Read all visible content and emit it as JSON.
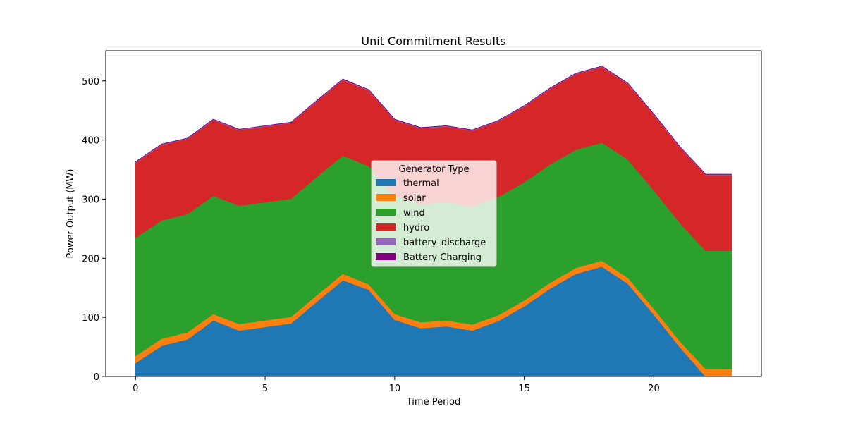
{
  "chart_data": {
    "type": "area",
    "title": "Unit Commitment Results",
    "xlabel": "Time Period",
    "ylabel": "Power Output (MW)",
    "xlim": [
      -1.15,
      24.15
    ],
    "ylim": [
      0,
      551
    ],
    "xticks": [
      0,
      5,
      10,
      15,
      20
    ],
    "yticks": [
      0,
      100,
      200,
      300,
      400,
      500
    ],
    "grid": false,
    "legend": {
      "title": "Generator Type",
      "placement": "center"
    },
    "x": [
      0,
      1,
      2,
      3,
      4,
      5,
      6,
      7,
      8,
      9,
      10,
      11,
      12,
      13,
      14,
      15,
      16,
      17,
      18,
      19,
      20,
      21,
      22,
      23
    ],
    "series": [
      {
        "name": "thermal",
        "color": "#1f77b4",
        "values": [
          23,
          52,
          63,
          95,
          78,
          84,
          90,
          127,
          163,
          147,
          96,
          82,
          85,
          78,
          94,
          119,
          149,
          174,
          186,
          157,
          105,
          50,
          0,
          0
        ]
      },
      {
        "name": "solar",
        "color": "#ff7f0e",
        "values": [
          12,
          12,
          12,
          11,
          11,
          11,
          11,
          11,
          11,
          9,
          10,
          10,
          10,
          10,
          10,
          10,
          10,
          10,
          10,
          10,
          10,
          10,
          13,
          13
        ]
      },
      {
        "name": "wind",
        "color": "#2ca02c",
        "values": [
          200,
          200,
          200,
          200,
          200,
          200,
          200,
          200,
          200,
          200,
          200,
          200,
          200,
          200,
          200,
          200,
          200,
          200,
          200,
          200,
          200,
          200,
          200,
          200
        ]
      },
      {
        "name": "hydro",
        "color": "#d62728",
        "values": [
          127,
          128,
          127,
          128,
          128,
          128,
          128,
          128,
          128,
          128,
          128,
          128,
          128,
          128,
          128,
          128,
          128,
          128,
          128,
          128,
          128,
          128,
          128,
          128
        ]
      },
      {
        "name": "battery_discharge",
        "color": "#9467bd",
        "values": [
          1,
          1,
          1,
          1,
          1,
          1,
          1,
          1,
          1,
          1,
          1,
          1,
          1,
          1,
          1,
          1,
          1,
          1,
          1,
          1,
          1,
          1,
          1,
          1
        ]
      },
      {
        "name": "Battery Charging",
        "color": "#800080",
        "values": [
          0,
          0,
          0,
          0,
          0,
          0,
          0,
          0,
          0,
          0,
          0,
          0,
          0,
          0,
          0,
          0,
          0,
          0,
          0,
          0,
          0,
          0,
          0,
          0
        ]
      }
    ]
  }
}
